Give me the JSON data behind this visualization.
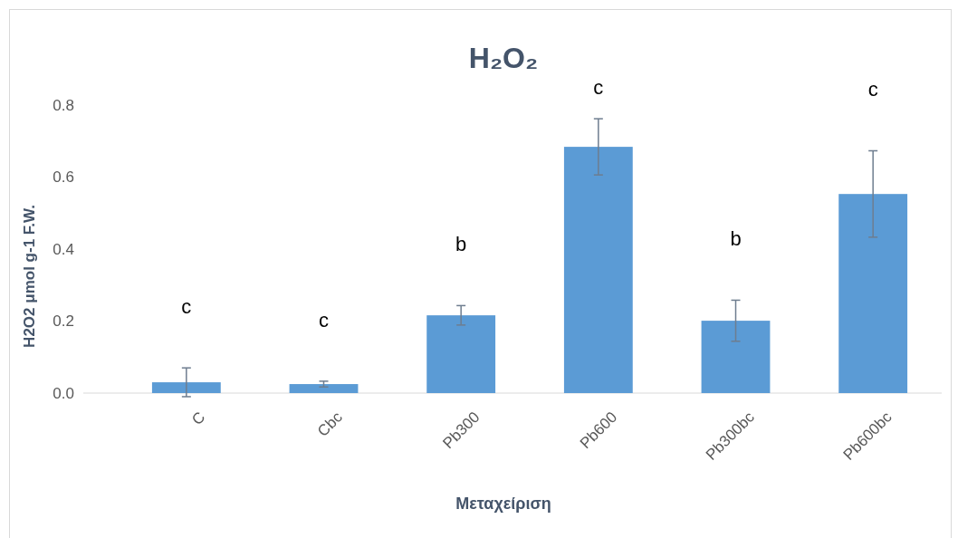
{
  "chart_data": {
    "type": "bar",
    "title": "H₂O₂",
    "xlabel": "Μεταχείριση",
    "ylabel": "H2O2 μmol g-1 F.W.",
    "categories": [
      "C",
      "Cbc",
      "Pb300",
      "Pb600",
      "Pb300bc",
      "Pb600bc"
    ],
    "values": [
      0.03,
      0.025,
      0.216,
      0.684,
      0.201,
      0.553
    ],
    "errors": [
      0.04,
      0.008,
      0.027,
      0.078,
      0.057,
      0.12
    ],
    "color": "#5b9bd5",
    "ylim": [
      0,
      0.8
    ],
    "yticks": [
      {
        "value": 0,
        "label": "0.0"
      },
      {
        "value": 0.2,
        "label": "0.2"
      },
      {
        "value": 0.4,
        "label": "0.4"
      },
      {
        "value": 0.6,
        "label": "0.6"
      },
      {
        "value": 0.8,
        "label": "0.8"
      }
    ],
    "grid": false,
    "annotations": [
      "c",
      "c",
      "b",
      "c",
      "b",
      "c"
    ]
  }
}
